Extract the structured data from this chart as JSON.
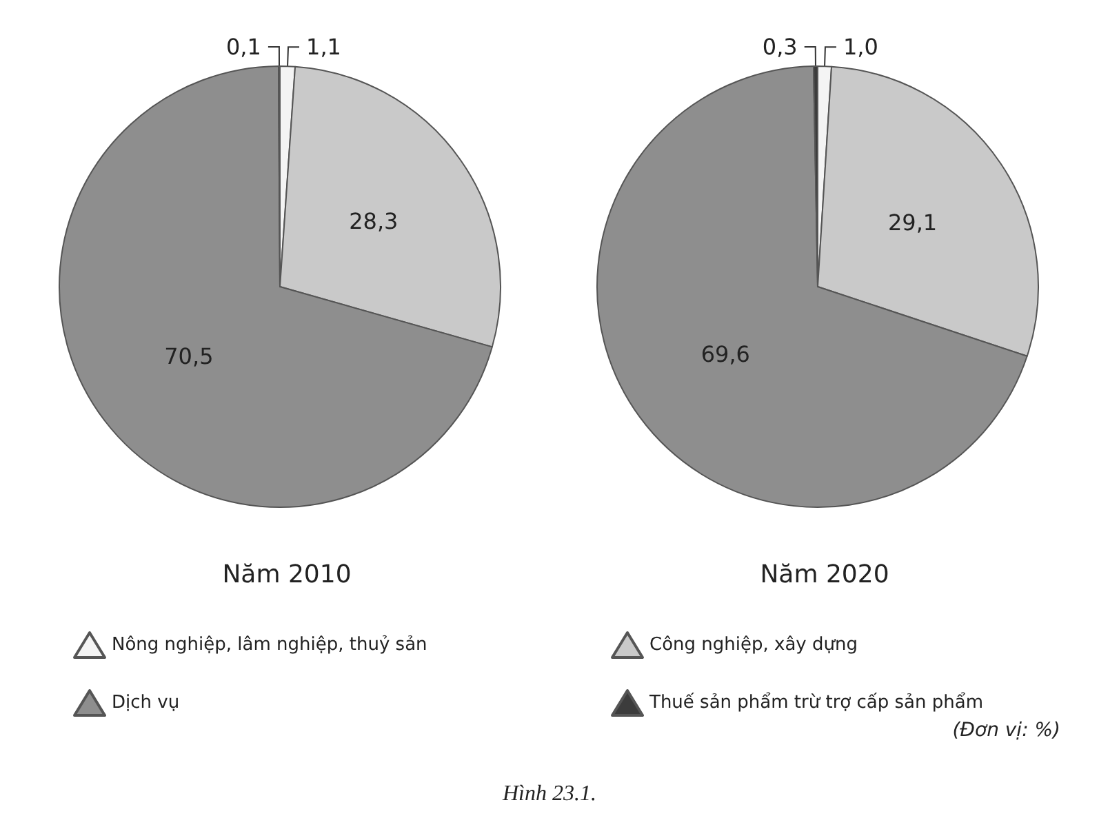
{
  "chart_data": [
    {
      "type": "pie",
      "title": "Năm 2010",
      "categories": [
        "Nông nghiệp, lâm nghiệp, thuỷ sản",
        "Công nghiệp, xây dựng",
        "Dịch vụ",
        "Thuế sản phẩm trừ trợ cấp sản phẩm"
      ],
      "values": [
        1.1,
        28.3,
        70.5,
        0.1
      ],
      "value_labels": [
        "1,1",
        "28,3",
        "70,5",
        "0,1"
      ],
      "colors": [
        "#f4f4f4",
        "#c9c9c9",
        "#8e8e8e",
        "#3c3c3c"
      ],
      "legend": "bottom"
    },
    {
      "type": "pie",
      "title": "Năm 2020",
      "categories": [
        null,
        null,
        null,
        null
      ],
      "values": [
        1.0,
        29.1,
        69.6,
        0.3
      ],
      "value_labels": [
        "1,0",
        "29,1",
        "69,6",
        "0,3"
      ],
      "colors": [
        "#f4f4f4",
        "#c9c9c9",
        "#8e8e8e",
        "#3c3c3c"
      ],
      "annotations": [
        "(Đơn vị: %)",
        "Hình 23.1."
      ]
    }
  ]
}
